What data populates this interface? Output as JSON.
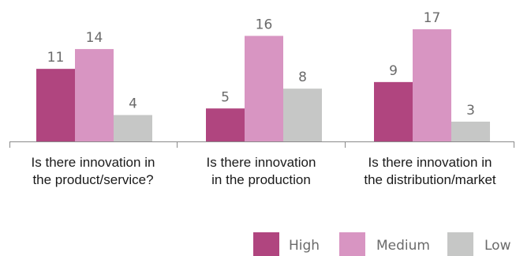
{
  "chart_data": {
    "type": "bar",
    "categories": [
      [
        "Is there innovation in",
        "the product/service?"
      ],
      [
        "Is there innovation",
        "in the production"
      ],
      [
        "Is there innovation in",
        "the distribution/market"
      ]
    ],
    "series": [
      {
        "name": "High",
        "color": "#b0457f",
        "values": [
          11,
          5,
          9
        ]
      },
      {
        "name": "Medium",
        "color": "#d895c2",
        "values": [
          14,
          16,
          17
        ]
      },
      {
        "name": "Low",
        "color": "#c6c7c6",
        "values": [
          4,
          8,
          3
        ]
      }
    ],
    "ylim": [
      0,
      20
    ],
    "data_labels": true,
    "grid": false,
    "legend_position": "bottom-right"
  }
}
